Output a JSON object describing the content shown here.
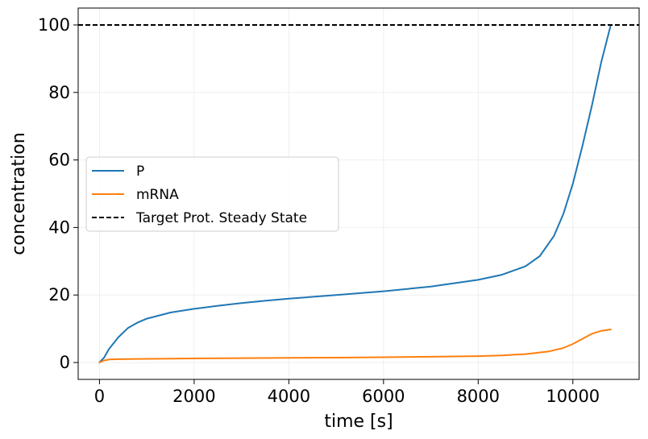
{
  "chart_data": {
    "type": "line",
    "xlabel": "time [s]",
    "ylabel": "concentration",
    "xlim": [
      -450,
      11400
    ],
    "ylim": [
      -5,
      105
    ],
    "xticks": [
      0,
      2000,
      4000,
      6000,
      8000,
      10000
    ],
    "yticks": [
      0,
      20,
      40,
      60,
      80,
      100
    ],
    "xtick_labels": [
      "0",
      "2000",
      "4000",
      "6000",
      "8000",
      "10000"
    ],
    "ytick_labels": [
      "0",
      "20",
      "40",
      "60",
      "80",
      "100"
    ],
    "grid": true,
    "legend_position": "center-left",
    "series": [
      {
        "name": "P",
        "color": "#1f77b4",
        "style": "solid",
        "x": [
          0,
          100,
          200,
          400,
          600,
          800,
          1000,
          1500,
          2000,
          2500,
          3000,
          3500,
          4000,
          5000,
          6000,
          7000,
          8000,
          8500,
          9000,
          9300,
          9600,
          9800,
          10000,
          10200,
          10400,
          10600,
          10800
        ],
        "y": [
          0,
          1.5,
          4.0,
          7.5,
          10.2,
          11.8,
          13.0,
          14.8,
          15.9,
          16.8,
          17.6,
          18.3,
          18.9,
          20.0,
          21.1,
          22.5,
          24.5,
          26.0,
          28.5,
          31.5,
          37.5,
          44.0,
          53.0,
          64.0,
          76.0,
          89.0,
          100.0
        ]
      },
      {
        "name": "mRNA",
        "color": "#ff7f0e",
        "style": "solid",
        "x": [
          0,
          100,
          200,
          400,
          800,
          1500,
          2000,
          3000,
          4000,
          5000,
          6000,
          7000,
          8000,
          8500,
          9000,
          9500,
          9800,
          10000,
          10200,
          10400,
          10600,
          10800
        ],
        "y": [
          0,
          0.6,
          0.9,
          1.0,
          1.05,
          1.15,
          1.2,
          1.3,
          1.4,
          1.45,
          1.55,
          1.7,
          1.9,
          2.1,
          2.5,
          3.3,
          4.3,
          5.5,
          7.0,
          8.5,
          9.4,
          9.8
        ]
      },
      {
        "name": "Target Prot. Steady State",
        "color": "#000000",
        "style": "dashed",
        "hline": 100
      }
    ]
  }
}
